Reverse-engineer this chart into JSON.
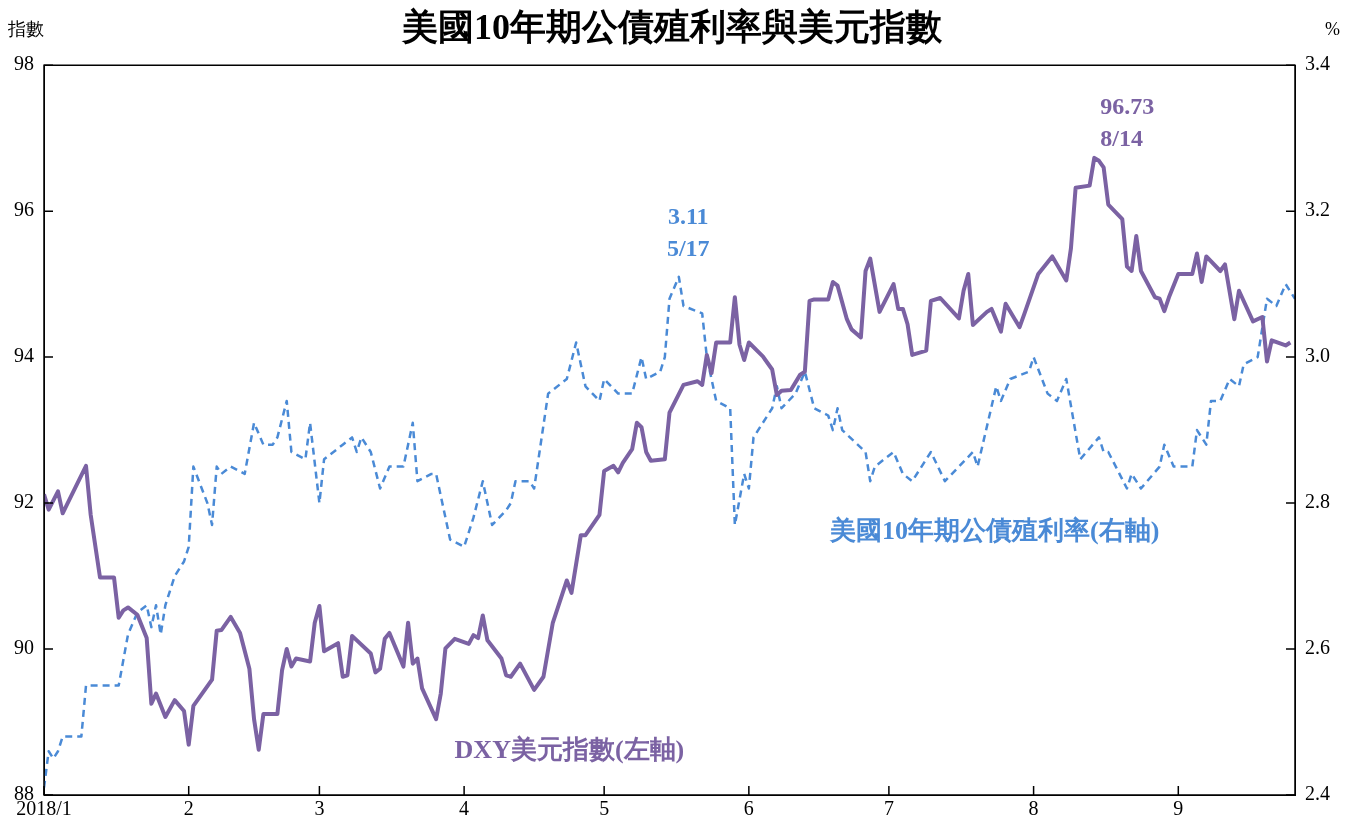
{
  "chart_data": {
    "type": "line",
    "title": "美國10年期公債殖利率與美元指數",
    "ylabel": "指數",
    "y2label": "%",
    "legend": false,
    "marker": "none",
    "xlim": [
      "2018-01-01",
      "2018-09-26"
    ],
    "xticks": [
      {
        "value": "2018-01-01",
        "label": "2018/1"
      },
      {
        "value": "2018-02-01",
        "label": "2"
      },
      {
        "value": "2018-03-01",
        "label": "3"
      },
      {
        "value": "2018-04-01",
        "label": "4"
      },
      {
        "value": "2018-05-01",
        "label": "5"
      },
      {
        "value": "2018-06-01",
        "label": "6"
      },
      {
        "value": "2018-07-01",
        "label": "7"
      },
      {
        "value": "2018-08-01",
        "label": "8"
      },
      {
        "value": "2018-09-01",
        "label": "9"
      }
    ],
    "ylim": [
      88,
      98
    ],
    "yticks": [
      88,
      90,
      92,
      94,
      96,
      98
    ],
    "y2lim": [
      2.4,
      3.4
    ],
    "y2ticks": [
      2.4,
      2.6,
      2.8,
      {
        "value": 3,
        "label": "3.0"
      },
      3.2,
      3.4
    ],
    "series": [
      {
        "name": "DXY美元指數(左軸)",
        "color": "#7b62a3",
        "line_style": "solid",
        "axis": "y",
        "x": [
          "2018-01-01",
          "2018-01-02",
          "2018-01-04",
          "2018-01-05",
          "2018-01-10",
          "2018-01-11",
          "2018-01-13",
          "2018-01-16",
          "2018-01-17",
          "2018-01-18",
          "2018-01-19",
          "2018-01-21",
          "2018-01-23",
          "2018-01-24",
          "2018-01-25",
          "2018-01-27",
          "2018-01-29",
          "2018-01-31",
          "2018-02-01",
          "2018-02-02",
          "2018-02-06",
          "2018-02-07",
          "2018-02-08",
          "2018-02-10",
          "2018-02-12",
          "2018-02-14",
          "2018-02-15",
          "2018-02-16",
          "2018-02-17",
          "2018-02-20",
          "2018-02-21",
          "2018-02-22",
          "2018-02-23",
          "2018-02-24",
          "2018-02-27",
          "2018-02-28",
          "2018-03-01",
          "2018-03-02",
          "2018-03-05",
          "2018-03-06",
          "2018-03-07",
          "2018-03-08",
          "2018-03-12",
          "2018-03-13",
          "2018-03-14",
          "2018-03-15",
          "2018-03-16",
          "2018-03-19",
          "2018-03-20",
          "2018-03-21",
          "2018-03-22",
          "2018-03-23",
          "2018-03-26",
          "2018-03-27",
          "2018-03-28",
          "2018-03-30",
          "2018-04-02",
          "2018-04-03",
          "2018-04-04",
          "2018-04-05",
          "2018-04-06",
          "2018-04-09",
          "2018-04-10",
          "2018-04-11",
          "2018-04-13",
          "2018-04-16",
          "2018-04-18",
          "2018-04-20",
          "2018-04-23",
          "2018-04-24",
          "2018-04-26",
          "2018-04-27",
          "2018-04-30",
          "2018-05-01",
          "2018-05-03",
          "2018-05-04",
          "2018-05-05",
          "2018-05-07",
          "2018-05-08",
          "2018-05-09",
          "2018-05-10",
          "2018-05-11",
          "2018-05-14",
          "2018-05-15",
          "2018-05-18",
          "2018-05-21",
          "2018-05-22",
          "2018-05-23",
          "2018-05-24",
          "2018-05-25",
          "2018-05-28",
          "2018-05-29",
          "2018-05-30",
          "2018-05-31",
          "2018-06-01",
          "2018-06-04",
          "2018-06-06",
          "2018-06-07",
          "2018-06-08",
          "2018-06-10",
          "2018-06-12",
          "2018-06-13",
          "2018-06-14",
          "2018-06-15",
          "2018-06-18",
          "2018-06-19",
          "2018-06-20",
          "2018-06-22",
          "2018-06-23",
          "2018-06-25",
          "2018-06-26",
          "2018-06-27",
          "2018-06-29",
          "2018-07-02",
          "2018-07-03",
          "2018-07-04",
          "2018-07-05",
          "2018-07-06",
          "2018-07-09",
          "2018-07-10",
          "2018-07-12",
          "2018-07-16",
          "2018-07-17",
          "2018-07-18",
          "2018-07-19",
          "2018-07-22",
          "2018-07-23",
          "2018-07-25",
          "2018-07-26",
          "2018-07-29",
          "2018-07-30",
          "2018-08-02",
          "2018-08-05",
          "2018-08-08",
          "2018-08-09",
          "2018-08-10",
          "2018-08-13",
          "2018-08-14",
          "2018-08-15",
          "2018-08-16",
          "2018-08-17",
          "2018-08-20",
          "2018-08-21",
          "2018-08-22",
          "2018-08-23",
          "2018-08-24",
          "2018-08-27",
          "2018-08-28",
          "2018-08-29",
          "2018-08-30",
          "2018-09-01",
          "2018-09-04",
          "2018-09-05",
          "2018-09-06",
          "2018-09-07",
          "2018-09-10",
          "2018-09-11",
          "2018-09-13",
          "2018-09-14",
          "2018-09-17",
          "2018-09-19",
          "2018-09-20",
          "2018-09-21",
          "2018-09-24",
          "2018-09-25"
        ],
        "values": [
          92.12,
          91.91,
          92.16,
          91.86,
          92.51,
          91.84,
          90.98,
          90.98,
          90.43,
          90.53,
          90.57,
          90.47,
          90.15,
          89.25,
          89.39,
          89.07,
          89.3,
          89.15,
          88.69,
          89.22,
          89.58,
          90.25,
          90.26,
          90.44,
          90.22,
          89.73,
          89.04,
          88.62,
          89.11,
          89.11,
          89.71,
          90.0,
          89.76,
          89.87,
          89.83,
          90.36,
          90.59,
          89.97,
          90.08,
          89.62,
          89.64,
          90.18,
          89.94,
          89.68,
          89.73,
          90.14,
          90.22,
          89.76,
          90.36,
          89.8,
          89.87,
          89.46,
          89.04,
          89.39,
          90.01,
          90.14,
          90.07,
          90.19,
          90.15,
          90.46,
          90.12,
          89.87,
          89.64,
          89.62,
          89.8,
          89.44,
          89.62,
          90.36,
          90.94,
          90.77,
          91.56,
          91.56,
          91.84,
          92.44,
          92.51,
          92.42,
          92.55,
          92.74,
          93.1,
          93.04,
          92.7,
          92.58,
          92.6,
          93.24,
          93.62,
          93.67,
          93.62,
          94.03,
          93.78,
          94.2,
          94.2,
          94.82,
          94.17,
          93.96,
          94.2,
          94.01,
          93.83,
          93.48,
          93.54,
          93.55,
          93.76,
          93.8,
          94.77,
          94.79,
          94.79,
          95.03,
          94.98,
          94.52,
          94.38,
          94.27,
          95.18,
          95.35,
          94.62,
          95.0,
          94.66,
          94.66,
          94.45,
          94.03,
          94.09,
          94.77,
          94.81,
          94.53,
          94.91,
          95.14,
          94.44,
          94.62,
          94.66,
          94.35,
          94.73,
          94.41,
          94.59,
          95.14,
          95.38,
          95.05,
          95.49,
          96.32,
          96.35,
          96.73,
          96.69,
          96.6,
          96.09,
          95.89,
          95.24,
          95.18,
          95.66,
          95.18,
          94.82,
          94.8,
          94.63,
          94.82,
          95.14,
          95.14,
          95.42,
          95.03,
          95.38,
          95.18,
          95.27,
          94.52,
          94.91,
          94.49,
          94.55,
          93.94,
          94.23,
          94.16,
          94.2
        ]
      },
      {
        "name": "美國10年期公債殖利率(右軸)",
        "color": "#4a8ad6",
        "line_style": "dashed",
        "axis": "y2",
        "x": [
          "2018-01-01",
          "2018-01-02",
          "2018-01-03",
          "2018-01-04",
          "2018-01-05",
          "2018-01-09",
          "2018-01-10",
          "2018-01-11",
          "2018-01-16",
          "2018-01-17",
          "2018-01-19",
          "2018-01-21",
          "2018-01-23",
          "2018-01-24",
          "2018-01-25",
          "2018-01-26",
          "2018-01-27",
          "2018-01-29",
          "2018-01-31",
          "2018-02-01",
          "2018-02-02",
          "2018-02-05",
          "2018-02-06",
          "2018-02-07",
          "2018-02-08",
          "2018-02-10",
          "2018-02-13",
          "2018-02-15",
          "2018-02-17",
          "2018-02-19",
          "2018-02-20",
          "2018-02-22",
          "2018-02-23",
          "2018-02-26",
          "2018-02-27",
          "2018-03-01",
          "2018-03-02",
          "2018-03-06",
          "2018-03-08",
          "2018-03-09",
          "2018-03-10",
          "2018-03-12",
          "2018-03-14",
          "2018-03-16",
          "2018-03-19",
          "2018-03-21",
          "2018-03-22",
          "2018-03-25",
          "2018-03-26",
          "2018-03-29",
          "2018-04-01",
          "2018-04-03",
          "2018-04-05",
          "2018-04-07",
          "2018-04-10",
          "2018-04-11",
          "2018-04-12",
          "2018-04-15",
          "2018-04-16",
          "2018-04-19",
          "2018-04-23",
          "2018-04-25",
          "2018-04-27",
          "2018-04-30",
          "2018-05-01",
          "2018-05-04",
          "2018-05-07",
          "2018-05-09",
          "2018-05-10",
          "2018-05-13",
          "2018-05-14",
          "2018-05-15",
          "2018-05-17",
          "2018-05-18",
          "2018-05-22",
          "2018-05-23",
          "2018-05-25",
          "2018-05-28",
          "2018-05-29",
          "2018-05-31",
          "2018-06-01",
          "2018-06-02",
          "2018-06-05",
          "2018-06-06",
          "2018-06-07",
          "2018-06-08",
          "2018-06-11",
          "2018-06-13",
          "2018-06-15",
          "2018-06-18",
          "2018-06-19",
          "2018-06-20",
          "2018-06-21",
          "2018-06-26",
          "2018-06-27",
          "2018-06-28",
          "2018-07-02",
          "2018-07-04",
          "2018-07-06",
          "2018-07-10",
          "2018-07-13",
          "2018-07-19",
          "2018-07-20",
          "2018-07-24",
          "2018-07-25",
          "2018-07-27",
          "2018-07-31",
          "2018-08-01",
          "2018-08-04",
          "2018-08-06",
          "2018-08-08",
          "2018-08-11",
          "2018-08-15",
          "2018-08-16",
          "2018-08-17",
          "2018-08-21",
          "2018-08-22",
          "2018-08-24",
          "2018-08-28",
          "2018-08-29",
          "2018-08-31",
          "2018-09-04",
          "2018-09-05",
          "2018-09-07",
          "2018-09-08",
          "2018-09-10",
          "2018-09-12",
          "2018-09-14",
          "2018-09-15",
          "2018-09-18",
          "2018-09-20",
          "2018-09-22",
          "2018-09-24",
          "2018-09-26"
        ],
        "values": [
          2.41,
          2.46,
          2.45,
          2.46,
          2.48,
          2.48,
          2.55,
          2.55,
          2.55,
          2.55,
          2.62,
          2.65,
          2.66,
          2.63,
          2.66,
          2.62,
          2.66,
          2.7,
          2.72,
          2.74,
          2.85,
          2.8,
          2.77,
          2.85,
          2.84,
          2.85,
          2.84,
          2.91,
          2.88,
          2.88,
          2.89,
          2.94,
          2.87,
          2.86,
          2.91,
          2.8,
          2.86,
          2.88,
          2.89,
          2.87,
          2.89,
          2.87,
          2.82,
          2.85,
          2.85,
          2.91,
          2.83,
          2.84,
          2.84,
          2.75,
          2.74,
          2.78,
          2.83,
          2.77,
          2.79,
          2.8,
          2.83,
          2.83,
          2.82,
          2.95,
          2.97,
          3.02,
          2.96,
          2.94,
          2.97,
          2.95,
          2.95,
          3.0,
          2.97,
          2.98,
          3.0,
          3.08,
          3.11,
          3.07,
          3.06,
          3.0,
          2.94,
          2.93,
          2.77,
          2.84,
          2.82,
          2.89,
          2.92,
          2.93,
          2.96,
          2.93,
          2.95,
          2.98,
          2.93,
          2.92,
          2.9,
          2.93,
          2.9,
          2.87,
          2.83,
          2.85,
          2.87,
          2.84,
          2.83,
          2.87,
          2.83,
          2.87,
          2.85,
          2.96,
          2.94,
          2.97,
          2.98,
          3.0,
          2.95,
          2.94,
          2.97,
          2.86,
          2.89,
          2.87,
          2.87,
          2.82,
          2.84,
          2.82,
          2.85,
          2.88,
          2.85,
          2.85,
          2.9,
          2.88,
          2.94,
          2.94,
          2.97,
          2.96,
          2.99,
          3.0,
          3.08,
          3.07,
          3.1,
          3.08
        ]
      }
    ],
    "annotations": [
      {
        "text": "96.73\n8/14",
        "x": "2018-08-14",
        "y": 96.73
      },
      "3.11\n5/17"
    ]
  }
}
